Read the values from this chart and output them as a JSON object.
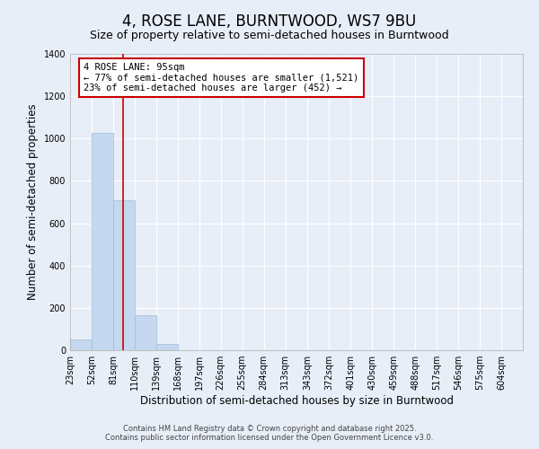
{
  "title": "4, ROSE LANE, BURNTWOOD, WS7 9BU",
  "subtitle": "Size of property relative to semi-detached houses in Burntwood",
  "xlabel": "Distribution of semi-detached houses by size in Burntwood",
  "ylabel": "Number of semi-detached properties",
  "bin_labels": [
    "23sqm",
    "52sqm",
    "81sqm",
    "110sqm",
    "139sqm",
    "168sqm",
    "197sqm",
    "226sqm",
    "255sqm",
    "284sqm",
    "313sqm",
    "343sqm",
    "372sqm",
    "401sqm",
    "430sqm",
    "459sqm",
    "488sqm",
    "517sqm",
    "546sqm",
    "575sqm",
    "604sqm"
  ],
  "bin_left_edges": [
    23,
    52,
    81,
    110,
    139,
    168,
    197,
    226,
    255,
    284,
    313,
    343,
    372,
    401,
    430,
    459,
    488,
    517,
    546,
    575,
    604
  ],
  "bin_width": 29,
  "values": [
    50,
    1025,
    710,
    165,
    30,
    0,
    0,
    0,
    0,
    0,
    0,
    0,
    0,
    0,
    0,
    0,
    0,
    0,
    0,
    0,
    0
  ],
  "bar_color": "#c5d8f0",
  "bar_edge_color": "#a0bcd8",
  "background_color": "#e8eef8",
  "grid_color": "#ffffff",
  "vline_x": 95,
  "vline_color": "#cc0000",
  "annotation_text": "4 ROSE LANE: 95sqm\n← 77% of semi-detached houses are smaller (1,521)\n23% of semi-detached houses are larger (452) →",
  "annotation_box_color": "#cc0000",
  "ylim": [
    0,
    1400
  ],
  "xlim_left": 23,
  "xlim_right": 633,
  "yticks": [
    0,
    200,
    400,
    600,
    800,
    1000,
    1200,
    1400
  ],
  "footer_line1": "Contains HM Land Registry data © Crown copyright and database right 2025.",
  "footer_line2": "Contains public sector information licensed under the Open Government Licence v3.0.",
  "title_fontsize": 12,
  "subtitle_fontsize": 9,
  "tick_fontsize": 7,
  "label_fontsize": 8.5,
  "footer_fontsize": 6,
  "ann_fontsize": 7.5
}
